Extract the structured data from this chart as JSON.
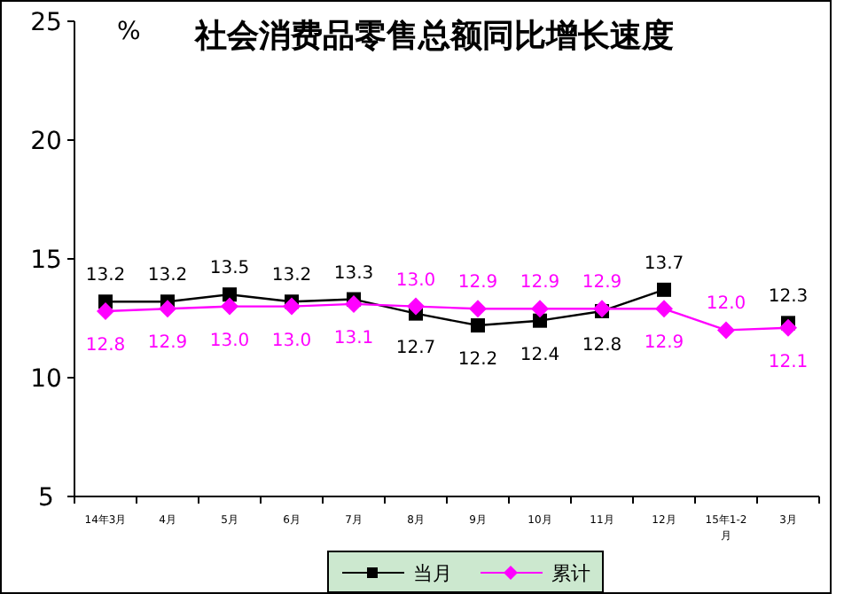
{
  "chart_data": {
    "type": "line",
    "title": "社会消费品零售总额同比增长速度",
    "ylabel": "%",
    "categories": [
      "14年3月",
      "4月",
      "5月",
      "6月",
      "7月",
      "8月",
      "9月",
      "10月",
      "11月",
      "12月",
      "15年1-2月",
      "3月"
    ],
    "series": [
      {
        "name": "当月",
        "color": "#000000",
        "marker": "square",
        "values": [
          13.2,
          13.2,
          13.5,
          13.2,
          13.3,
          12.7,
          12.2,
          12.4,
          12.8,
          13.7,
          null,
          12.3
        ],
        "value_labels": [
          "13.2",
          "13.2",
          "13.5",
          "13.2",
          "13.3",
          "12.7",
          "12.2",
          "12.4",
          "12.8",
          "13.7",
          null,
          "12.3"
        ]
      },
      {
        "name": "累计",
        "color": "#ff00ff",
        "marker": "diamond",
        "values": [
          12.8,
          12.9,
          13.0,
          13.0,
          13.1,
          13.0,
          12.9,
          12.9,
          12.9,
          12.9,
          12.0,
          12.1
        ],
        "value_labels": [
          "12.8",
          "12.9",
          "13.0",
          "13.0",
          "13.1",
          "13.0",
          "12.9",
          "12.9",
          "12.9",
          "12.9",
          "12.0",
          "12.1"
        ]
      }
    ],
    "ylim": [
      5,
      25
    ],
    "yticks": [
      5,
      10,
      15,
      20,
      25
    ],
    "grid": false,
    "legend": "bottom"
  }
}
